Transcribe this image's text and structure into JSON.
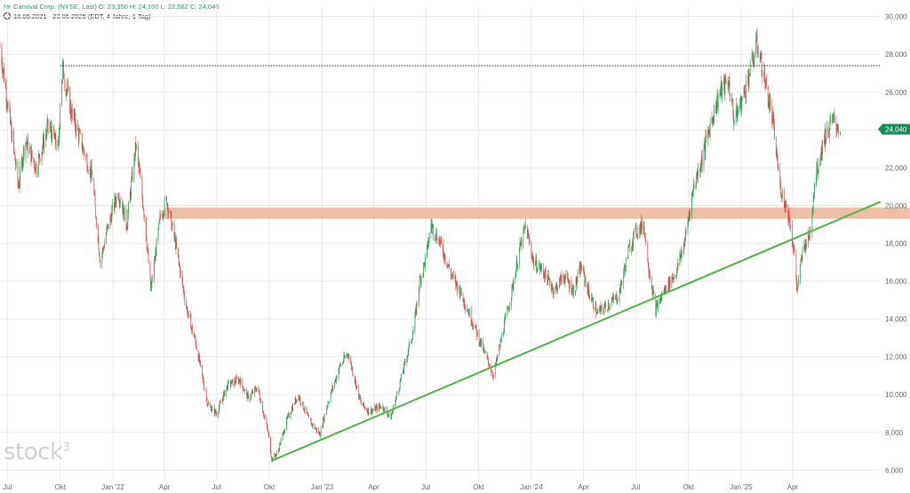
{
  "header": {
    "line1": {
      "icon": "ticker-icon",
      "name": "Carnival Corp. (NYSE, Last)",
      "open": "O: 23,350",
      "high": "H: 24,100",
      "low": "L: 22,582",
      "close": "C: 24,040"
    },
    "line2": {
      "icon": "clock-icon",
      "text": "18.06.2021 - 23.06.2025  (EDT, 4 Jahre, 1 Tag)"
    }
  },
  "watermark": {
    "text": "stock",
    "superscript": "3"
  },
  "colors": {
    "up": "#2e9e4f",
    "down": "#e04a4a",
    "trendline": "#4cb843",
    "zone": "#e8a98a",
    "price_tag_bg": "#1a8a5a",
    "grid": "#e9e9e9",
    "axis_text": "#666666"
  },
  "chart_data": {
    "type": "candlestick",
    "instrument": "Carnival Corp. (NYSE, Last)",
    "x_range": [
      "18.06.2021",
      "23.06.2025"
    ],
    "ylim": [
      5.5,
      30.5
    ],
    "y_axis_side": "right",
    "y_ticks": [
      "30,000",
      "28,000",
      "26,000",
      "24,000",
      "22,000",
      "20,000",
      "18,000",
      "16,000",
      "14,000",
      "12,000",
      "10,000",
      "8,000",
      "6,000"
    ],
    "y_tick_values": [
      30,
      28,
      26,
      24,
      22,
      20,
      18,
      16,
      14,
      12,
      10,
      8,
      6
    ],
    "x_ticks": [
      {
        "label": "Jul",
        "date": "2021-07-01"
      },
      {
        "label": "Okt",
        "date": "2021-10-01"
      },
      {
        "label": "Jan '22",
        "date": "2022-01-01"
      },
      {
        "label": "Apr",
        "date": "2022-04-01"
      },
      {
        "label": "Jul",
        "date": "2022-07-01"
      },
      {
        "label": "Okt",
        "date": "2022-10-01"
      },
      {
        "label": "Jan '23",
        "date": "2023-01-01"
      },
      {
        "label": "Apr",
        "date": "2023-04-01"
      },
      {
        "label": "Jul",
        "date": "2023-07-01"
      },
      {
        "label": "Okt",
        "date": "2023-10-01"
      },
      {
        "label": "Jan '24",
        "date": "2024-01-01"
      },
      {
        "label": "Apr",
        "date": "2024-04-01"
      },
      {
        "label": "Jul",
        "date": "2024-07-01"
      },
      {
        "label": "Okt",
        "date": "2024-10-01"
      },
      {
        "label": "Jan '25",
        "date": "2025-01-01"
      },
      {
        "label": "Apr",
        "date": "2025-04-01"
      }
    ],
    "grid": true,
    "last_price_label": "24,040",
    "last_price": 24.04,
    "price_path": [
      [
        "2021-06-18",
        28.4
      ],
      [
        "2021-07-01",
        25.5
      ],
      [
        "2021-07-20",
        21.0
      ],
      [
        "2021-08-01",
        23.5
      ],
      [
        "2021-08-20",
        22.0
      ],
      [
        "2021-09-10",
        24.2
      ],
      [
        "2021-09-28",
        23.0
      ],
      [
        "2021-10-01",
        25.5
      ],
      [
        "2021-10-05",
        27.3
      ],
      [
        "2021-10-20",
        25.0
      ],
      [
        "2021-11-10",
        23.0
      ],
      [
        "2021-11-26",
        21.5
      ],
      [
        "2021-12-10",
        17.0
      ],
      [
        "2021-12-20",
        18.5
      ],
      [
        "2022-01-10",
        20.8
      ],
      [
        "2022-01-25",
        19.0
      ],
      [
        "2022-02-10",
        23.2
      ],
      [
        "2022-02-25",
        19.5
      ],
      [
        "2022-03-08",
        15.5
      ],
      [
        "2022-03-25",
        19.5
      ],
      [
        "2022-04-05",
        20.3
      ],
      [
        "2022-04-20",
        18.0
      ],
      [
        "2022-05-10",
        14.5
      ],
      [
        "2022-05-25",
        12.8
      ],
      [
        "2022-06-15",
        9.5
      ],
      [
        "2022-07-01",
        9.0
      ],
      [
        "2022-07-20",
        10.5
      ],
      [
        "2022-08-10",
        10.8
      ],
      [
        "2022-08-25",
        9.8
      ],
      [
        "2022-09-10",
        10.4
      ],
      [
        "2022-09-28",
        8.1
      ],
      [
        "2022-10-05",
        6.6
      ],
      [
        "2022-10-15",
        6.9
      ],
      [
        "2022-11-01",
        8.7
      ],
      [
        "2022-11-20",
        10.0
      ],
      [
        "2022-12-10",
        8.6
      ],
      [
        "2022-12-28",
        7.9
      ],
      [
        "2023-01-10",
        9.5
      ],
      [
        "2023-02-01",
        11.5
      ],
      [
        "2023-02-15",
        12.2
      ],
      [
        "2023-03-10",
        9.5
      ],
      [
        "2023-03-25",
        9.1
      ],
      [
        "2023-04-15",
        9.4
      ],
      [
        "2023-05-01",
        8.8
      ],
      [
        "2023-05-20",
        11.0
      ],
      [
        "2023-06-10",
        13.5
      ],
      [
        "2023-06-20",
        16.0
      ],
      [
        "2023-07-01",
        17.2
      ],
      [
        "2023-07-10",
        19.0
      ],
      [
        "2023-07-25",
        18.1
      ],
      [
        "2023-08-15",
        16.3
      ],
      [
        "2023-09-01",
        15.3
      ],
      [
        "2023-09-20",
        13.9
      ],
      [
        "2023-10-10",
        12.3
      ],
      [
        "2023-10-27",
        11.0
      ],
      [
        "2023-11-10",
        13.0
      ],
      [
        "2023-11-28",
        15.5
      ],
      [
        "2023-12-10",
        17.5
      ],
      [
        "2023-12-22",
        18.9
      ],
      [
        "2024-01-05",
        17.0
      ],
      [
        "2024-01-20",
        16.6
      ],
      [
        "2024-02-10",
        15.5
      ],
      [
        "2024-02-26",
        16.3
      ],
      [
        "2024-03-15",
        15.5
      ],
      [
        "2024-03-28",
        16.8
      ],
      [
        "2024-04-10",
        15.4
      ],
      [
        "2024-04-25",
        14.3
      ],
      [
        "2024-05-15",
        14.8
      ],
      [
        "2024-06-01",
        15.2
      ],
      [
        "2024-06-20",
        17.8
      ],
      [
        "2024-07-01",
        18.6
      ],
      [
        "2024-07-15",
        19.0
      ],
      [
        "2024-07-25",
        16.5
      ],
      [
        "2024-08-05",
        14.5
      ],
      [
        "2024-08-20",
        15.5
      ],
      [
        "2024-09-10",
        16.5
      ],
      [
        "2024-09-25",
        18.2
      ],
      [
        "2024-10-10",
        21.0
      ],
      [
        "2024-10-25",
        22.5
      ],
      [
        "2024-11-10",
        24.5
      ],
      [
        "2024-11-25",
        26.0
      ],
      [
        "2024-12-10",
        26.6
      ],
      [
        "2024-12-20",
        24.5
      ],
      [
        "2025-01-05",
        25.8
      ],
      [
        "2025-01-22",
        27.8
      ],
      [
        "2025-01-29",
        28.6
      ],
      [
        "2025-02-10",
        26.8
      ],
      [
        "2025-02-25",
        24.5
      ],
      [
        "2025-03-10",
        21.0
      ],
      [
        "2025-03-25",
        19.5
      ],
      [
        "2025-04-04",
        17.5
      ],
      [
        "2025-04-08",
        15.5
      ],
      [
        "2025-04-20",
        17.8
      ],
      [
        "2025-05-01",
        18.5
      ],
      [
        "2025-05-10",
        21.5
      ],
      [
        "2025-05-25",
        23.5
      ],
      [
        "2025-06-10",
        24.5
      ],
      [
        "2025-06-23",
        24.04
      ]
    ]
  },
  "annotations": {
    "resistance_line": {
      "price": 27.4,
      "from": "2021-10-01",
      "to_axis": true,
      "style": "dotted"
    },
    "zone": {
      "low": 19.3,
      "high": 19.9,
      "from": "2022-04-01",
      "to": "2025-06-23"
    },
    "trendline": {
      "from": [
        "2022-10-05",
        6.5
      ],
      "to": [
        "2025-09-01",
        20.2
      ],
      "extends_to_axis": true
    }
  }
}
